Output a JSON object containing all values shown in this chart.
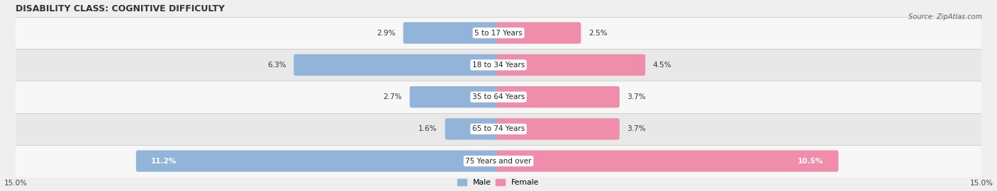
{
  "title": "DISABILITY CLASS: COGNITIVE DIFFICULTY",
  "source": "Source: ZipAtlas.com",
  "categories": [
    "5 to 17 Years",
    "18 to 34 Years",
    "35 to 64 Years",
    "65 to 74 Years",
    "75 Years and over"
  ],
  "male_values": [
    2.9,
    6.3,
    2.7,
    1.6,
    11.2
  ],
  "female_values": [
    2.5,
    4.5,
    3.7,
    3.7,
    10.5
  ],
  "male_color": "#92B4D8",
  "female_color": "#F08DAA",
  "male_label": "Male",
  "female_label": "Female",
  "xlim": 15.0,
  "bar_height": 0.55,
  "bg_color": "#EFEFEF",
  "row_bg_odd": "#F7F7F7",
  "row_bg_even": "#E8E8E8",
  "title_fontsize": 9.0,
  "label_fontsize": 7.8,
  "cat_fontsize": 7.5,
  "axis_fontsize": 7.5,
  "source_fontsize": 7.0,
  "value_fontsize": 7.5
}
